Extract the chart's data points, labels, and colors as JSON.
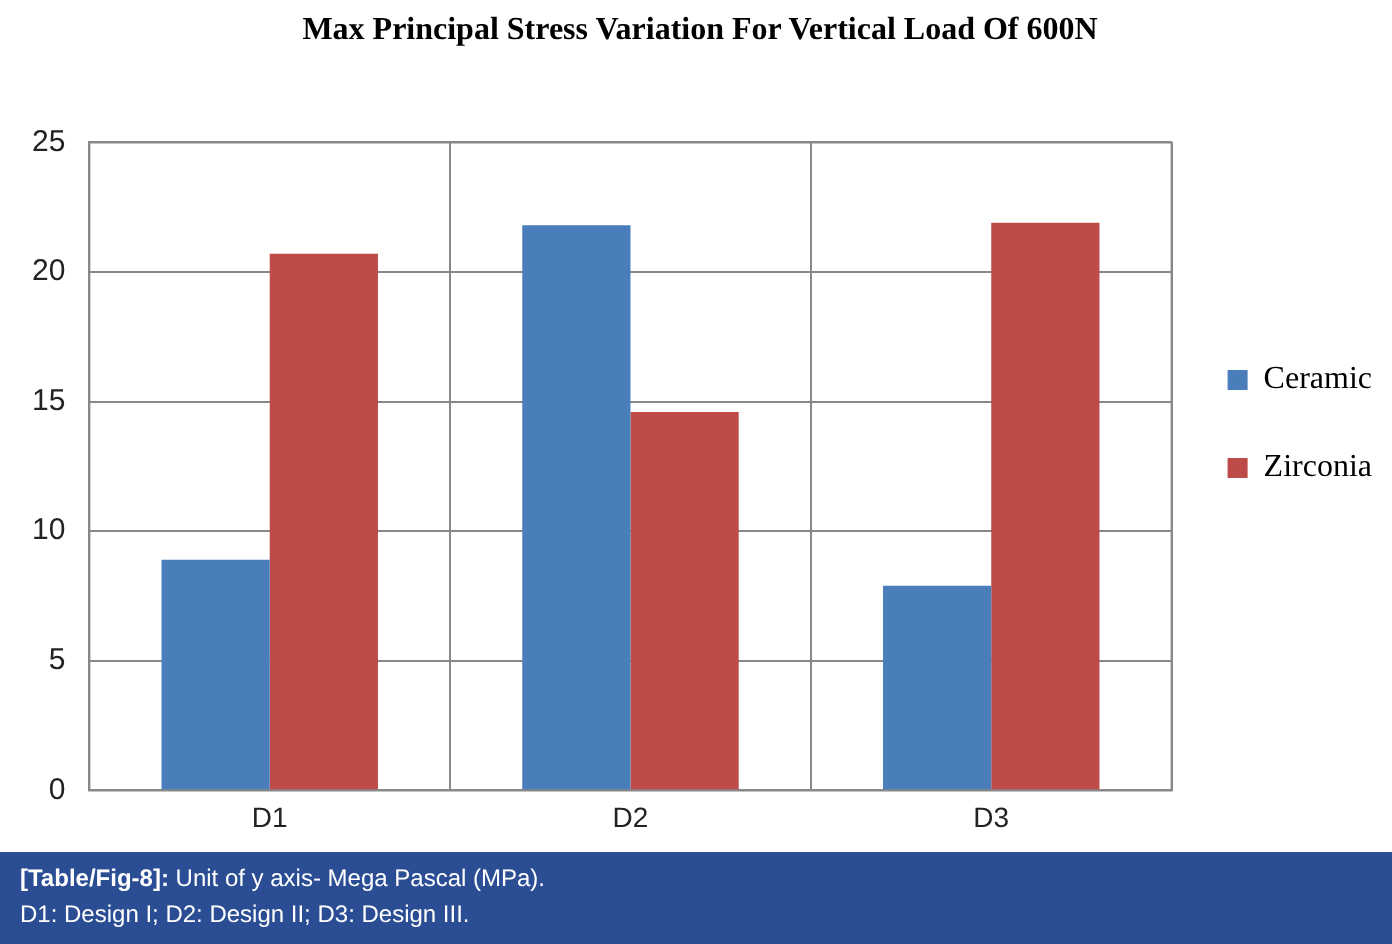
{
  "chart_data": {
    "type": "bar",
    "title": "Max Principal Stress Variation For Vertical Load Of 600N",
    "categories": [
      "D1",
      "D2",
      "D3"
    ],
    "series": [
      {
        "name": "Ceramic",
        "color": "#4a7ebb",
        "values": [
          8.9,
          21.8,
          7.9
        ]
      },
      {
        "name": "Zirconia",
        "color": "#be4b48",
        "values": [
          20.7,
          14.6,
          21.9
        ]
      }
    ],
    "ylim": [
      0,
      25
    ],
    "yticks": [
      0,
      5,
      10,
      15,
      20,
      25
    ],
    "grid": true,
    "legend": "right",
    "annotations": [
      "[Table/Fig-8]: Unit of y axis- Mega Pascal (MPa).",
      "D1: Design I; D2: Design II; D3: Design III."
    ]
  }
}
